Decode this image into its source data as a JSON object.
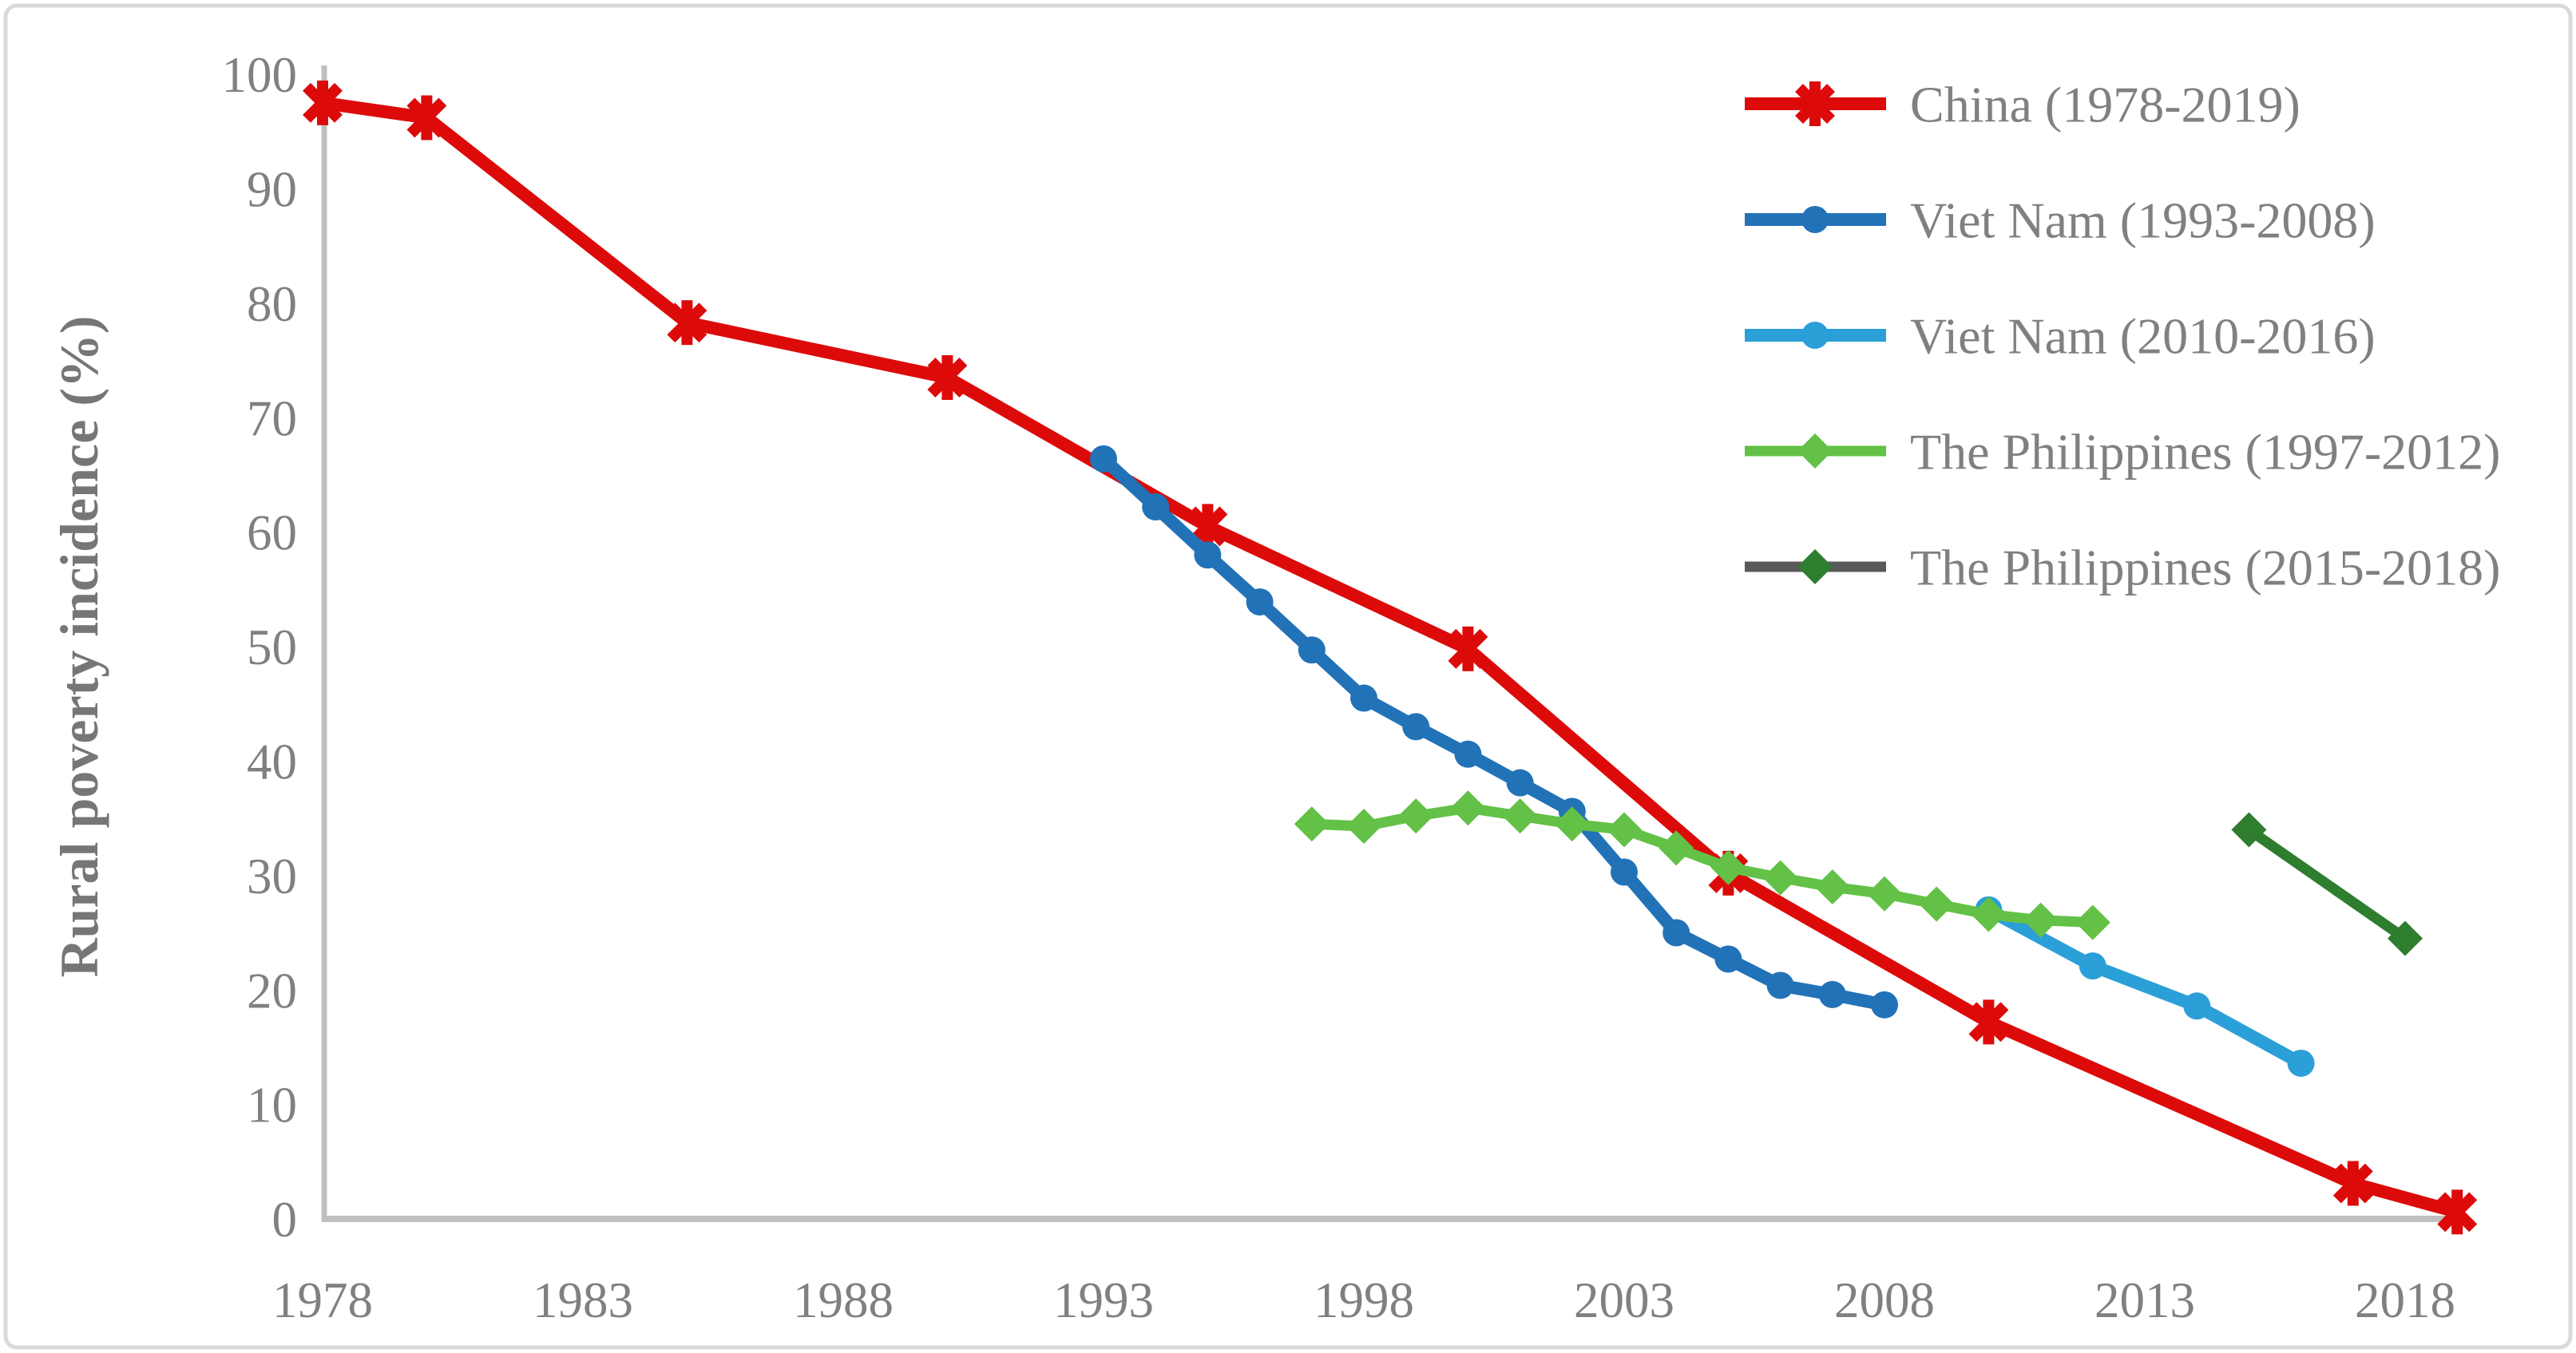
{
  "figure": {
    "background_color": "#ffffff",
    "border_color": "#d9d9d9",
    "axis_line_color": "#bfbfbf",
    "text_color": "#808080",
    "y_axis_title": "Rural poverty incidence (%)"
  },
  "chart_data": {
    "type": "line",
    "title": "",
    "xlabel": "",
    "ylabel": "Rural poverty incidence (%)",
    "xlim": [
      1978,
      2019
    ],
    "ylim": [
      0,
      100
    ],
    "grid": false,
    "legend_position": "top-right",
    "x_ticks": [
      1978,
      1983,
      1988,
      1993,
      1998,
      2003,
      2008,
      2013,
      2018
    ],
    "y_ticks": [
      0,
      10,
      20,
      30,
      40,
      50,
      60,
      70,
      80,
      90,
      100
    ],
    "series": [
      {
        "name": "China (1978-2019)",
        "color": "#dd0a0a",
        "legend_line_color": "#dd0a0a",
        "marker": "asterisk",
        "line_width": 16,
        "points": [
          [
            1978,
            97.5
          ],
          [
            1980,
            96.2
          ],
          [
            1985,
            78.3
          ],
          [
            1990,
            73.5
          ],
          [
            1995,
            60.5
          ],
          [
            2000,
            49.8
          ],
          [
            2005,
            30.2
          ],
          [
            2010,
            17.2
          ],
          [
            2017,
            3.1
          ],
          [
            2019,
            0.6
          ]
        ]
      },
      {
        "name": "Viet Nam (1993-2008)",
        "color": "#2272b8",
        "legend_line_color": "#2272b8",
        "marker": "circle",
        "line_width": 16,
        "points": [
          [
            1993,
            66.4
          ],
          [
            1994,
            62.2
          ],
          [
            1995,
            58.0
          ],
          [
            1996,
            53.9
          ],
          [
            1997,
            49.7
          ],
          [
            1998,
            45.5
          ],
          [
            1999,
            43.0
          ],
          [
            2000,
            40.6
          ],
          [
            2001,
            38.1
          ],
          [
            2002,
            35.6
          ],
          [
            2003,
            30.3
          ],
          [
            2004,
            25.0
          ],
          [
            2005,
            22.7
          ],
          [
            2006,
            20.4
          ],
          [
            2007,
            19.6
          ],
          [
            2008,
            18.7
          ]
        ]
      },
      {
        "name": "Viet Nam (2010-2016)",
        "color": "#2b9fd8",
        "legend_line_color": "#2b9fd8",
        "marker": "circle",
        "line_width": 16,
        "points": [
          [
            2010,
            27.0
          ],
          [
            2012,
            22.1
          ],
          [
            2014,
            18.6
          ],
          [
            2016,
            13.6
          ]
        ]
      },
      {
        "name": "The Philippines (1997-2012)",
        "color": "#62c146",
        "legend_line_color": "#62c146",
        "marker": "diamond",
        "line_width": 13,
        "points": [
          [
            1997,
            34.5
          ],
          [
            1998,
            34.3
          ],
          [
            1999,
            35.2
          ],
          [
            2000,
            35.9
          ],
          [
            2001,
            35.2
          ],
          [
            2002,
            34.5
          ],
          [
            2003,
            34.0
          ],
          [
            2004,
            32.4
          ],
          [
            2005,
            30.7
          ],
          [
            2006,
            29.8
          ],
          [
            2007,
            29.0
          ],
          [
            2008,
            28.4
          ],
          [
            2009,
            27.5
          ],
          [
            2010,
            26.6
          ],
          [
            2011,
            26.1
          ],
          [
            2012,
            25.9
          ]
        ]
      },
      {
        "name": "The Philippines (2015-2018)",
        "color": "#2f7d2e",
        "legend_line_color": "#595959",
        "marker": "diamond",
        "line_width": 13,
        "points": [
          [
            2015,
            34.0
          ],
          [
            2018,
            24.5
          ]
        ]
      }
    ]
  }
}
